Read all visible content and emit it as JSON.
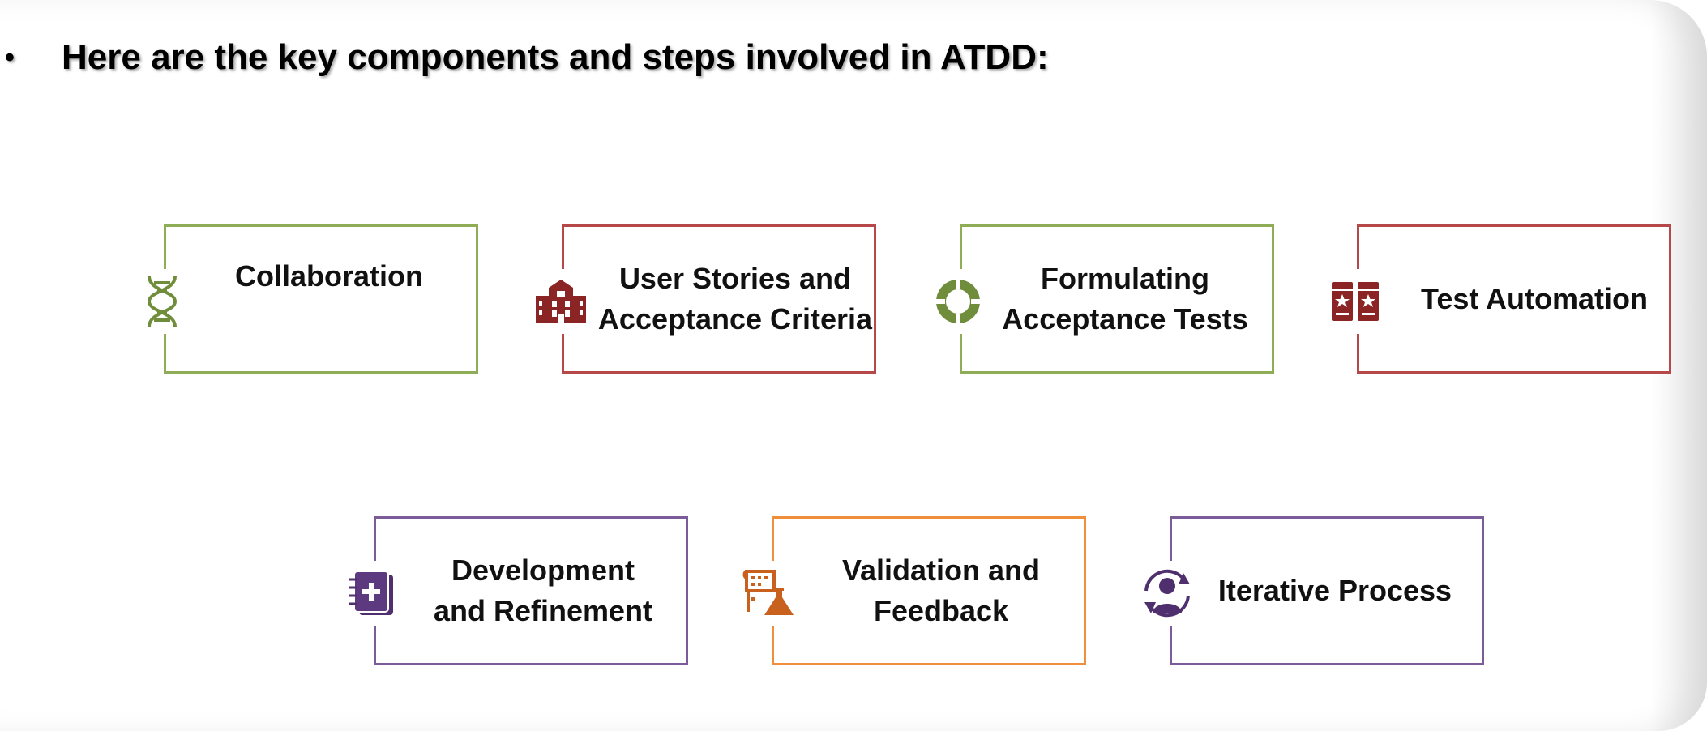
{
  "heading": {
    "bullet": "•",
    "text": "Here are the key components and steps involved in ATDD:"
  },
  "colors": {
    "green": "#8fac57",
    "red": "#b7484a",
    "purple": "#7b5b99",
    "orange": "#ef8f3c",
    "icon_green": "#6f8d3a",
    "icon_red": "#8b2424",
    "icon_purple": "#4f2f6e",
    "icon_orange": "#c8611d"
  },
  "steps": [
    {
      "label": "Collaboration",
      "icon": "dna-icon",
      "color": "green"
    },
    {
      "label": "User Stories and\nAcceptance Criteria",
      "icon": "building-icon",
      "color": "red"
    },
    {
      "label": "Formulating\nAcceptance Tests",
      "icon": "lifebuoy-icon",
      "color": "green"
    },
    {
      "label": "Test Automation",
      "icon": "star-cards-icon",
      "color": "red"
    },
    {
      "label": "Development\nand Refinement",
      "icon": "notebook-plus-icon",
      "color": "purple"
    },
    {
      "label": "Validation and\nFeedback",
      "icon": "lab-flask-icon",
      "color": "orange"
    },
    {
      "label": "Iterative Process",
      "icon": "user-cycle-icon",
      "color": "purple"
    }
  ]
}
